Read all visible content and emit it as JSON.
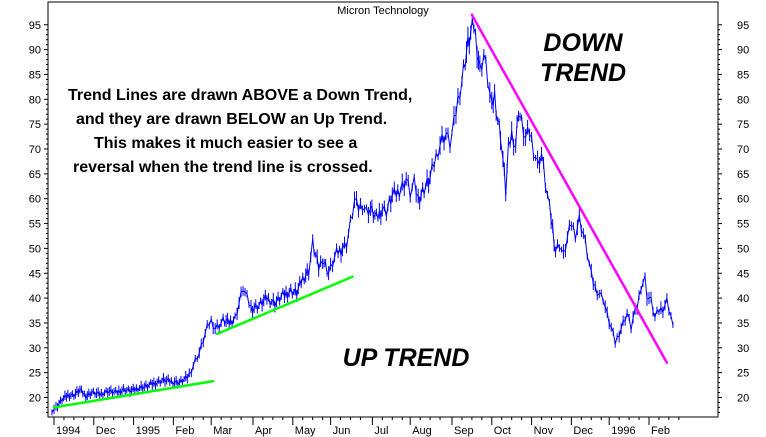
{
  "chart_data": {
    "type": "line",
    "title": "Micron Technology",
    "xlabel": "",
    "ylabel": "",
    "ylim": [
      15.6,
      98
    ],
    "y_ticks": [
      20,
      25,
      30,
      35,
      40,
      45,
      50,
      55,
      60,
      65,
      70,
      75,
      80,
      85,
      90,
      95
    ],
    "x_range_months": [
      0,
      14.2
    ],
    "x_ticks": [
      {
        "label": "1994",
        "m": 0.05
      },
      {
        "label": "Dec",
        "m": 1.05
      },
      {
        "label": "1995",
        "m": 2.05
      },
      {
        "label": "Feb",
        "m": 3.05
      },
      {
        "label": "Mar",
        "m": 4.0
      },
      {
        "label": "Apr",
        "m": 5.05
      },
      {
        "label": "May",
        "m": 6.05
      },
      {
        "label": "Jun",
        "m": 7.0
      },
      {
        "label": "Jul",
        "m": 8.05
      },
      {
        "label": "Aug",
        "m": 9.0
      },
      {
        "label": "Sep",
        "m": 10.05
      },
      {
        "label": "Oct",
        "m": 11.05
      },
      {
        "label": "Nov",
        "m": 12.05
      },
      {
        "label": "Dec",
        "m": 13.05
      },
      {
        "label": "1996",
        "m": 14.0
      },
      {
        "label": "Feb",
        "m": 15.0
      }
    ],
    "series": [
      {
        "color": "#0000ff",
        "points": [
          [
            0.0,
            17.4
          ],
          [
            0.1,
            18.0
          ],
          [
            0.25,
            19.5
          ],
          [
            0.4,
            20.5
          ],
          [
            0.55,
            20.5
          ],
          [
            0.7,
            21.5
          ],
          [
            0.85,
            20.3
          ],
          [
            1.0,
            21.0
          ],
          [
            1.2,
            20.6
          ],
          [
            1.4,
            21.3
          ],
          [
            1.6,
            21.0
          ],
          [
            1.8,
            21.6
          ],
          [
            2.0,
            21.3
          ],
          [
            2.2,
            22.0
          ],
          [
            2.4,
            22.3
          ],
          [
            2.6,
            23.0
          ],
          [
            2.8,
            23.5
          ],
          [
            3.0,
            23.2
          ],
          [
            3.2,
            23.0
          ],
          [
            3.4,
            24.0
          ],
          [
            3.5,
            25.5
          ],
          [
            3.6,
            27.5
          ],
          [
            3.7,
            29.0
          ],
          [
            3.8,
            31.5
          ],
          [
            3.9,
            34.0
          ],
          [
            4.0,
            35.5
          ],
          [
            4.1,
            34.0
          ],
          [
            4.2,
            34.5
          ],
          [
            4.3,
            35.5
          ],
          [
            4.45,
            35.0
          ],
          [
            4.6,
            36.0
          ],
          [
            4.7,
            39.0
          ],
          [
            4.8,
            42.0
          ],
          [
            4.9,
            40.0
          ],
          [
            5.0,
            38.0
          ],
          [
            5.2,
            38.5
          ],
          [
            5.4,
            40.0
          ],
          [
            5.6,
            39.0
          ],
          [
            5.8,
            40.5
          ],
          [
            6.0,
            41.5
          ],
          [
            6.15,
            41.0
          ],
          [
            6.3,
            44.0
          ],
          [
            6.45,
            45.5
          ],
          [
            6.55,
            51.0
          ],
          [
            6.7,
            46.0
          ],
          [
            6.8,
            48.0
          ],
          [
            6.95,
            45.0
          ],
          [
            7.05,
            47.0
          ],
          [
            7.15,
            49.0
          ],
          [
            7.3,
            50.0
          ],
          [
            7.4,
            51.0
          ],
          [
            7.5,
            55.0
          ],
          [
            7.6,
            59.5
          ],
          [
            7.7,
            58.0
          ],
          [
            7.8,
            59.0
          ],
          [
            7.9,
            57.5
          ],
          [
            8.0,
            58.0
          ],
          [
            8.15,
            56.0
          ],
          [
            8.3,
            58.0
          ],
          [
            8.4,
            57.5
          ],
          [
            8.55,
            60.5
          ],
          [
            8.65,
            61.0
          ],
          [
            8.8,
            62.5
          ],
          [
            8.9,
            64.0
          ],
          [
            9.0,
            61.0
          ],
          [
            9.1,
            63.0
          ],
          [
            9.2,
            60.0
          ],
          [
            9.35,
            62.0
          ],
          [
            9.5,
            64.0
          ],
          [
            9.6,
            67.0
          ],
          [
            9.7,
            70.0
          ],
          [
            9.8,
            72.0
          ],
          [
            9.9,
            73.0
          ],
          [
            10.0,
            71.0
          ],
          [
            10.1,
            75.0
          ],
          [
            10.2,
            80.0
          ],
          [
            10.3,
            84.0
          ],
          [
            10.38,
            88.0
          ],
          [
            10.45,
            91.0
          ],
          [
            10.52,
            93.0
          ],
          [
            10.6,
            95.0
          ],
          [
            10.68,
            90.5
          ],
          [
            10.75,
            86.0
          ],
          [
            10.85,
            89.0
          ],
          [
            10.95,
            84.0
          ],
          [
            11.05,
            78.0
          ],
          [
            11.12,
            81.0
          ],
          [
            11.2,
            76.0
          ],
          [
            11.27,
            73.0
          ],
          [
            11.33,
            68.0
          ],
          [
            11.4,
            61.5
          ],
          [
            11.47,
            70.0
          ],
          [
            11.55,
            73.0
          ],
          [
            11.65,
            71.0
          ],
          [
            11.72,
            78.0
          ],
          [
            11.8,
            75.0
          ],
          [
            11.9,
            72.0
          ],
          [
            12.0,
            73.5
          ],
          [
            12.1,
            70.0
          ],
          [
            12.2,
            67.0
          ],
          [
            12.3,
            69.0
          ],
          [
            12.4,
            63.0
          ],
          [
            12.5,
            58.0
          ],
          [
            12.58,
            54.0
          ],
          [
            12.65,
            49.5
          ],
          [
            12.75,
            51.0
          ],
          [
            12.85,
            48.5
          ],
          [
            12.95,
            52.0
          ],
          [
            13.05,
            55.0
          ],
          [
            13.15,
            53.0
          ],
          [
            13.25,
            56.0
          ],
          [
            13.35,
            53.0
          ],
          [
            13.45,
            49.0
          ],
          [
            13.55,
            44.5
          ],
          [
            13.65,
            42.0
          ],
          [
            13.75,
            41.0
          ],
          [
            13.85,
            40.0
          ],
          [
            13.95,
            36.5
          ],
          [
            14.05,
            34.0
          ],
          [
            14.15,
            31.0
          ],
          [
            14.25,
            33.0
          ],
          [
            14.35,
            35.0
          ],
          [
            14.45,
            37.0
          ],
          [
            14.55,
            34.0
          ],
          [
            14.6,
            36.0
          ],
          [
            14.7,
            38.0
          ],
          [
            14.8,
            42.5
          ],
          [
            14.9,
            44.0
          ],
          [
            14.95,
            40.5
          ],
          [
            15.05,
            39.5
          ],
          [
            15.15,
            36.0
          ],
          [
            15.25,
            37.5
          ],
          [
            15.35,
            38.0
          ],
          [
            15.45,
            39.5
          ],
          [
            15.55,
            36.5
          ],
          [
            15.6,
            34.0
          ]
        ]
      }
    ],
    "trend_lines": [
      {
        "color": "#00ff00",
        "from": [
          0.05,
          18.0
        ],
        "to": [
          4.05,
          23.3
        ]
      },
      {
        "color": "#00ff00",
        "from": [
          4.15,
          32.8
        ],
        "to": [
          7.55,
          44.3
        ]
      },
      {
        "color": "#ff00ff",
        "from": [
          10.55,
          97.0
        ],
        "to": [
          15.45,
          27.0
        ]
      }
    ],
    "annotations": {
      "note_lines": [
        "Trend Lines are drawn ABOVE a Down Trend,",
        "and they are drawn BELOW an Up Trend.",
        "This makes it much easier to see a",
        "reversal when the trend line is crossed."
      ],
      "down_trend": [
        "DOWN",
        "TREND"
      ],
      "up_trend": "UP TREND"
    },
    "grid": false,
    "legend": "none"
  }
}
